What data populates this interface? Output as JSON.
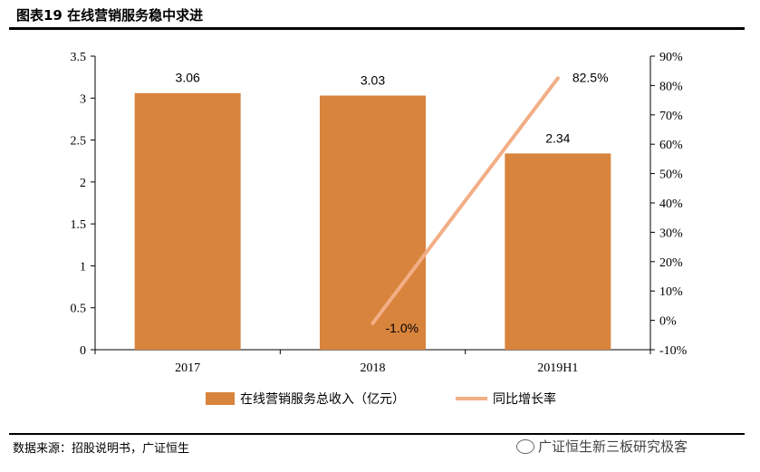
{
  "header": {
    "title": "图表19 在线营销服务稳中求进"
  },
  "footer": {
    "source": "数据来源：招股说明书，广证恒生",
    "watermark": "广证恒生新三板研究极客"
  },
  "chart_data": {
    "type": "bar",
    "categories": [
      "2017",
      "2018",
      "2019H1"
    ],
    "series": [
      {
        "name": "在线营销服务总收入（亿元）",
        "type": "bar",
        "axis": "left",
        "values": [
          3.06,
          3.03,
          2.34
        ],
        "labels": [
          "3.06",
          "3.03",
          "2.34"
        ],
        "color": "#D9843D"
      },
      {
        "name": "同比增长率",
        "type": "line",
        "axis": "right",
        "x": [
          "2018",
          "2019H1"
        ],
        "values": [
          -1.0,
          82.5
        ],
        "labels": [
          "-1.0%",
          "82.5%"
        ],
        "color": "#F2AE86"
      }
    ],
    "y_left": {
      "min": 0,
      "max": 3.5,
      "ticks": [
        "0",
        "0.5",
        "1",
        "1.5",
        "2",
        "2.5",
        "3",
        "3.5"
      ]
    },
    "y_right": {
      "min": -10,
      "max": 90,
      "ticks": [
        "-10%",
        "0%",
        "10%",
        "20%",
        "30%",
        "40%",
        "50%",
        "60%",
        "70%",
        "80%",
        "90%"
      ]
    },
    "grid": false,
    "legend": "bottom"
  }
}
